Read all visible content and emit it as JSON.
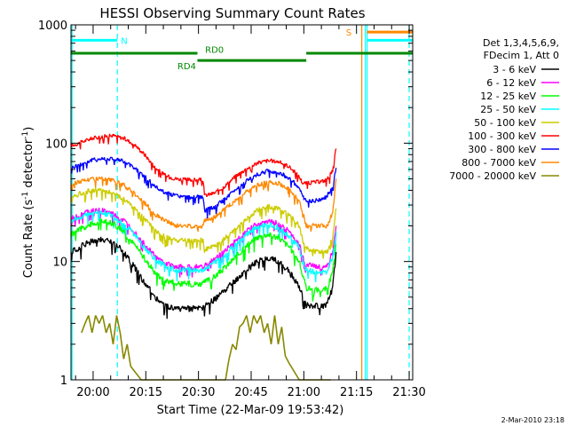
{
  "chart_data": {
    "type": "line",
    "title": "HESSI Observing Summary Count Rates",
    "xlabel": "Start Time (22-Mar-09 19:53:42)",
    "ylabel": "Count Rate (s",
    "ylabel_sup": "-1",
    "ylabel_mid": " detector",
    "ylabel_sup2": "-1",
    "ylabel_end": ")",
    "yscale": "log",
    "ylim": [
      1,
      1000
    ],
    "xlim_minutes": [
      0,
      97.3
    ],
    "xticks": [
      {
        "label": "20:00",
        "minutes": 6.3
      },
      {
        "label": "20:15",
        "minutes": 21.3
      },
      {
        "label": "20:30",
        "minutes": 36.3
      },
      {
        "label": "20:45",
        "minutes": 51.3
      },
      {
        "label": "21:00",
        "minutes": 66.3
      },
      {
        "label": "21:15",
        "minutes": 81.3
      },
      {
        "label": "21:30",
        "minutes": 96.3
      }
    ],
    "yticks": [
      {
        "label": "1",
        "value": 1
      },
      {
        "label": "10",
        "value": 10
      },
      {
        "label": "100",
        "value": 100
      },
      {
        "label": "1000",
        "value": 1000
      }
    ],
    "legend": {
      "position": "right",
      "header": [
        "Det 1,3,4,5,6,9,",
        "FDecim 1, Att 0"
      ],
      "entries": [
        {
          "label": "3 - 6 keV",
          "color": "#000000"
        },
        {
          "label": "6 - 12 keV",
          "color": "#ff00ff"
        },
        {
          "label": "12 - 25 keV",
          "color": "#00ff00"
        },
        {
          "label": "25 - 50 keV",
          "color": "#00ffff"
        },
        {
          "label": "50 - 100 keV",
          "color": "#cccc00"
        },
        {
          "label": "100 - 300 keV",
          "color": "#ff0000"
        },
        {
          "label": "300 - 800 keV",
          "color": "#0000ff"
        },
        {
          "label": "800 - 7000 keV",
          "color": "#ff8800"
        },
        {
          "label": "7000 - 20000 keV",
          "color": "#888800"
        }
      ]
    },
    "series": [
      {
        "color": "#ff0000",
        "x": [
          0,
          3,
          6,
          9,
          12,
          15,
          18,
          21,
          24,
          27,
          30,
          33,
          36,
          37.6,
          38,
          41,
          44,
          47,
          50,
          53,
          56,
          59,
          62,
          65,
          66,
          67,
          70,
          72,
          73,
          74.5,
          75.5
        ],
        "y": [
          95,
          102,
          110,
          114,
          116,
          110,
          98,
          80,
          62,
          53,
          50,
          49,
          49,
          49,
          36,
          38,
          44,
          53,
          61,
          68,
          71,
          70,
          64,
          52,
          46,
          46,
          47,
          48,
          50,
          58,
          90
        ]
      },
      {
        "color": "#0000ff",
        "x": [
          0,
          3,
          6,
          9,
          12,
          15,
          18,
          21,
          24,
          27,
          30,
          33,
          36,
          37.6,
          38,
          41,
          44,
          47,
          50,
          53,
          56,
          59,
          62,
          65,
          66,
          67,
          70,
          72,
          73,
          74.5,
          75.5
        ],
        "y": [
          62,
          67,
          72,
          74,
          74,
          70,
          62,
          52,
          43,
          38,
          36,
          35,
          35,
          35,
          27,
          29,
          34,
          41,
          48,
          54,
          58,
          57,
          51,
          42,
          35,
          32,
          33,
          34,
          36,
          42,
          62
        ]
      },
      {
        "color": "#ff8800",
        "x": [
          0,
          3,
          6,
          9,
          12,
          15,
          18,
          21,
          24,
          27,
          30,
          33,
          36,
          37.6,
          38,
          41,
          44,
          47,
          50,
          53,
          56,
          59,
          62,
          65,
          66,
          67,
          70,
          72,
          73,
          74.5,
          75.5
        ],
        "y": [
          45,
          48,
          50,
          50,
          48,
          44,
          38,
          31,
          25,
          22,
          20,
          20,
          20,
          20,
          22,
          24,
          28,
          33,
          39,
          44,
          47,
          46,
          41,
          33,
          26,
          20,
          20,
          20,
          20,
          26,
          50
        ]
      },
      {
        "color": "#cccc00",
        "x": [
          0,
          3,
          6,
          9,
          12,
          15,
          18,
          21,
          24,
          27,
          30,
          33,
          36,
          37.6,
          38,
          41,
          44,
          47,
          50,
          53,
          56,
          59,
          62,
          65,
          66,
          67,
          70,
          72,
          73,
          74.5,
          75.5
        ],
        "y": [
          35,
          38,
          40,
          40,
          38,
          34,
          28,
          23,
          18,
          16,
          15,
          15,
          15,
          15,
          12.5,
          13.5,
          16,
          19,
          23,
          27,
          29,
          28,
          25,
          20,
          15,
          13,
          12,
          12,
          12,
          16,
          28
        ]
      },
      {
        "color": "#ff00ff",
        "x": [
          0,
          3,
          6,
          9,
          12,
          15,
          18,
          21,
          24,
          27,
          30,
          33,
          36,
          37.6,
          38,
          41,
          44,
          47,
          50,
          53,
          56,
          59,
          62,
          65,
          66,
          67,
          70,
          72,
          73,
          74.5,
          75.5
        ],
        "y": [
          23,
          25,
          27,
          27,
          25,
          22,
          18,
          14,
          11,
          9.5,
          9,
          9,
          9,
          9,
          9.3,
          10.5,
          12.5,
          15,
          18,
          21,
          22,
          21,
          18,
          14,
          11,
          9.5,
          9,
          9,
          9.3,
          12,
          20
        ]
      },
      {
        "color": "#00ffff",
        "x": [
          0,
          3,
          6,
          9,
          12,
          15,
          18,
          21,
          24,
          27,
          30,
          33,
          36,
          37.6,
          38,
          41,
          44,
          47,
          50,
          53,
          56,
          59,
          62,
          65,
          66,
          67,
          70,
          72,
          73,
          74.5,
          75.5
        ],
        "y": [
          22,
          24,
          26,
          26,
          24,
          21,
          17,
          13,
          10.5,
          9,
          8.5,
          8.5,
          8.5,
          8.5,
          8.7,
          9.8,
          11.5,
          14,
          17,
          19.5,
          20.5,
          19.5,
          16.5,
          13,
          10,
          8.5,
          8,
          8,
          8.3,
          11,
          18
        ]
      },
      {
        "color": "#00ff00",
        "x": [
          0,
          3,
          6,
          9,
          12,
          15,
          18,
          21,
          24,
          27,
          30,
          33,
          36,
          37.6,
          38,
          41,
          44,
          47,
          50,
          53,
          56,
          59,
          62,
          65,
          66,
          67,
          70,
          72,
          73,
          74.5,
          75.5
        ],
        "y": [
          17,
          19,
          21,
          22,
          21,
          18,
          14,
          10.5,
          8,
          7,
          6.5,
          6.5,
          6.5,
          6.5,
          6.7,
          7.5,
          9,
          11,
          13.5,
          16,
          17,
          16,
          13.5,
          10,
          7.5,
          6,
          5.8,
          5.8,
          6,
          8,
          14
        ]
      },
      {
        "color": "#000000",
        "x": [
          0,
          3,
          6,
          9,
          12,
          15,
          18,
          21,
          24,
          27,
          30,
          33,
          36,
          37.6,
          38,
          41,
          44,
          47,
          50,
          53,
          56,
          59,
          62,
          65,
          66,
          67,
          70,
          72,
          73,
          74.5,
          75.5
        ],
        "y": [
          12,
          13.5,
          15,
          15.5,
          14.5,
          12,
          9,
          6.5,
          5,
          4.3,
          4,
          4,
          4,
          4,
          4.2,
          4.8,
          5.8,
          7,
          8.5,
          10,
          10.8,
          10,
          8.3,
          6.2,
          5,
          4.3,
          4.2,
          4.2,
          4.4,
          6,
          12
        ]
      },
      {
        "color": "#888800",
        "x": [
          3,
          4,
          5,
          6,
          7,
          8,
          9,
          10,
          11,
          12,
          13,
          14,
          15,
          16,
          17,
          20,
          23,
          26,
          29,
          32,
          35,
          38,
          41,
          44,
          45,
          46,
          47,
          48,
          49,
          50,
          51,
          52,
          53,
          54,
          55,
          56,
          57,
          58,
          59,
          60,
          61,
          62,
          65,
          68,
          71,
          74
        ],
        "y": [
          2.5,
          3,
          3.5,
          2.5,
          3.5,
          3,
          3.5,
          2.5,
          3,
          2,
          3.5,
          2.5,
          1.5,
          2,
          1.3,
          1,
          1,
          1,
          1,
          1,
          1,
          1,
          1,
          1,
          1.5,
          2,
          1.8,
          2.8,
          3,
          3.5,
          2.5,
          3.5,
          3,
          3.5,
          2.5,
          3,
          2,
          3.5,
          2,
          2.8,
          1.6,
          1.4,
          1,
          1,
          1,
          1
        ]
      }
    ],
    "annotations": [
      {
        "text": "N",
        "color": "#00ffff",
        "minutes": 13.2
      },
      {
        "text": "S",
        "color": "#ff8800",
        "minutes": 80.9
      },
      {
        "text": "RD0",
        "color": "#008800",
        "minutes": 38.2
      },
      {
        "text": "RD4",
        "color": "#008800",
        "minutes": 30.3
      }
    ],
    "status_bars": [
      {
        "name": "night",
        "color": "#00ffff",
        "level": 740,
        "segments": [
          [
            0,
            13.2
          ],
          [
            84.3,
            97.3
          ]
        ]
      },
      {
        "name": "saa",
        "color": "#ff8800",
        "level": 870,
        "segments": [
          [
            84.3,
            97.3
          ]
        ]
      },
      {
        "name": "rd0",
        "color": "#008800",
        "level": 575,
        "segments": [
          [
            0,
            36.0
          ],
          [
            67.0,
            97.3
          ]
        ]
      },
      {
        "name": "rd4",
        "color": "#008800",
        "level": 500,
        "segments": [
          [
            36.0,
            67.0
          ]
        ]
      }
    ],
    "vlines": [
      {
        "color": "#00ffff",
        "style": "solid",
        "minutes": 0.3
      },
      {
        "color": "#00ffff",
        "style": "dashed",
        "minutes": 13.2
      },
      {
        "color": "#ff8800",
        "style": "solid",
        "minutes": 82.8
      },
      {
        "color": "#00ffff",
        "style": "solid",
        "minutes": 83.8
      },
      {
        "color": "#00ffff",
        "style": "solid",
        "minutes": 84.3
      },
      {
        "color": "#00ffff",
        "style": "dashed",
        "minutes": 96.3
      }
    ]
  },
  "footer": {
    "timestamp": "2-Mar-2010 23:18"
  }
}
